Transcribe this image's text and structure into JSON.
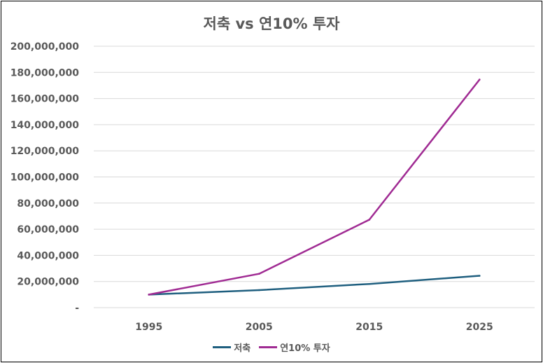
{
  "chart_data": {
    "type": "line",
    "title": "저축 vs 연10% 투자",
    "categories": [
      "1995",
      "2005",
      "2015",
      "2025"
    ],
    "series": [
      {
        "name": "저축",
        "color": "#1f5f7f",
        "values": [
          10000000,
          13400000,
          18100000,
          24400000
        ]
      },
      {
        "name": "연10% 투자",
        "color": "#a02b93",
        "values": [
          10000000,
          25900000,
          67300000,
          174500000
        ]
      }
    ],
    "ylim": [
      0,
      200000000
    ],
    "yticks": [
      0,
      20000000,
      40000000,
      60000000,
      80000000,
      100000000,
      120000000,
      140000000,
      160000000,
      180000000,
      200000000
    ],
    "ytick_labels": [
      "-",
      "20,000,000",
      "40,000,000",
      "60,000,000",
      "80,000,000",
      "100,000,000",
      "120,000,000",
      "140,000,000",
      "160,000,000",
      "180,000,000",
      "200,000,000"
    ],
    "grid": true,
    "legend_position": "bottom"
  }
}
